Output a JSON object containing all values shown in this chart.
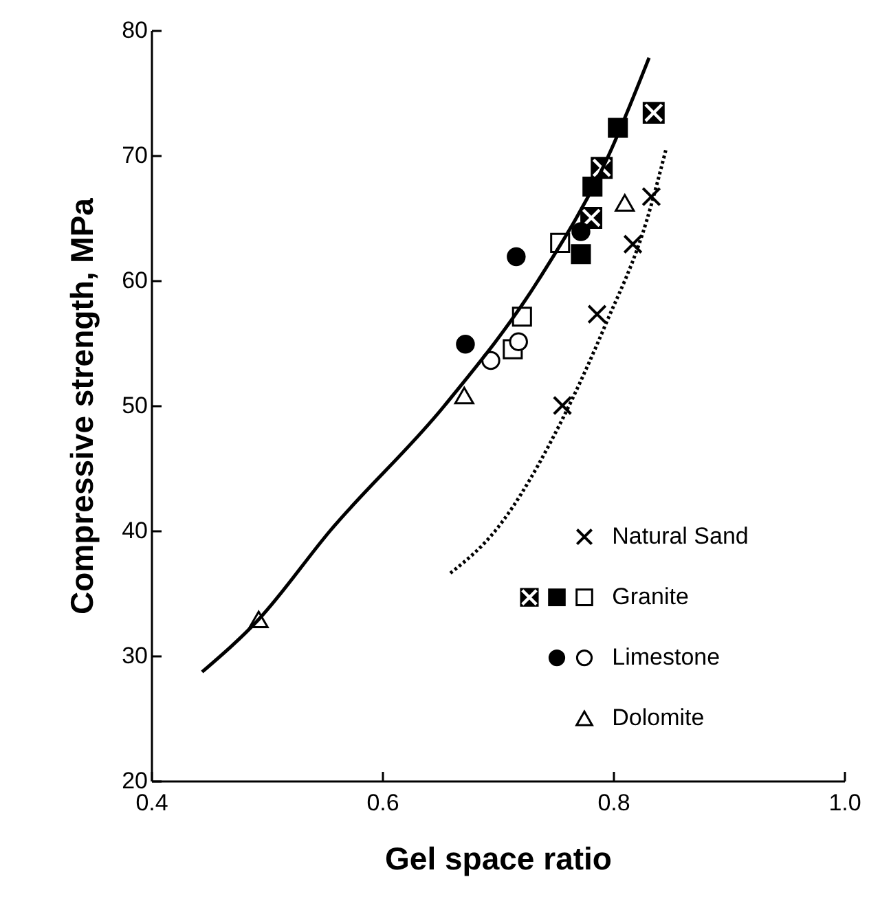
{
  "chart_data": {
    "type": "scatter",
    "xlabel": "Gel space ratio",
    "ylabel": "Compressive strength,  MPa",
    "xlim": [
      0.4,
      1.0
    ],
    "xticks": [
      0.4,
      0.6,
      0.8,
      {
        "value": 1.0,
        "label": "1.0"
      }
    ],
    "ylim": [
      20,
      80
    ],
    "yticks": [
      20,
      30,
      40,
      50,
      60,
      70,
      80
    ],
    "legend": "bottom right",
    "series": [
      {
        "name": "Natural Sand",
        "marker": "cross",
        "color": "#000000",
        "x": [
          0.756,
          0.786,
          0.817,
          0.833
        ],
        "values": [
          50.0,
          57.3,
          62.9,
          66.7
        ]
      },
      {
        "color": "#000000",
        "x": [
          0.781,
          0.79,
          0.835
        ],
        "values": [
          65.0,
          69.0,
          73.4
        ]
      },
      {
        "marker": "square",
        "color": "#000000",
        "x": [
          0.772,
          0.782,
          0.804
        ],
        "values": [
          62.1,
          67.5,
          72.2
        ]
      },
      {
        "name": "Granite",
        "marker": "square",
        "color": "#ffffff",
        "x": [
          0.713,
          0.721,
          0.754
        ],
        "values": [
          54.5,
          57.1,
          63.0
        ]
      },
      {
        "marker": "circle",
        "color": "#000000",
        "x": [
          0.672,
          0.716,
          0.772
        ],
        "values": [
          54.9,
          61.9,
          63.9
        ]
      },
      {
        "name": "Limestone",
        "marker": "circle",
        "color": "#ffffff",
        "x": [
          0.694,
          0.718
        ],
        "values": [
          53.6,
          55.1
        ]
      },
      {
        "name": "Dolomite",
        "marker": "triangle",
        "color": "#ffffff",
        "x": [
          0.493,
          0.671,
          0.81
        ],
        "values": [
          32.9,
          50.8,
          66.2
        ]
      },
      {
        "type": "line",
        "line_style": "solid",
        "marker": "none",
        "color": "#000000",
        "x": [
          0.444,
          0.493,
          0.555,
          0.654,
          0.735,
          0.796,
          0.831
        ],
        "values": [
          28.7,
          32.9,
          40,
          50,
          60,
          70,
          77.8
        ]
      },
      {
        "type": "line",
        "line_style": "dotted",
        "marker": "none",
        "color": "#000000",
        "x": [
          0.659,
          0.698,
          0.757,
          0.793,
          0.829,
          0.846
        ],
        "values": [
          36.6,
          40,
          49.1,
          56.4,
          64.8,
          70.6
        ]
      }
    ]
  }
}
